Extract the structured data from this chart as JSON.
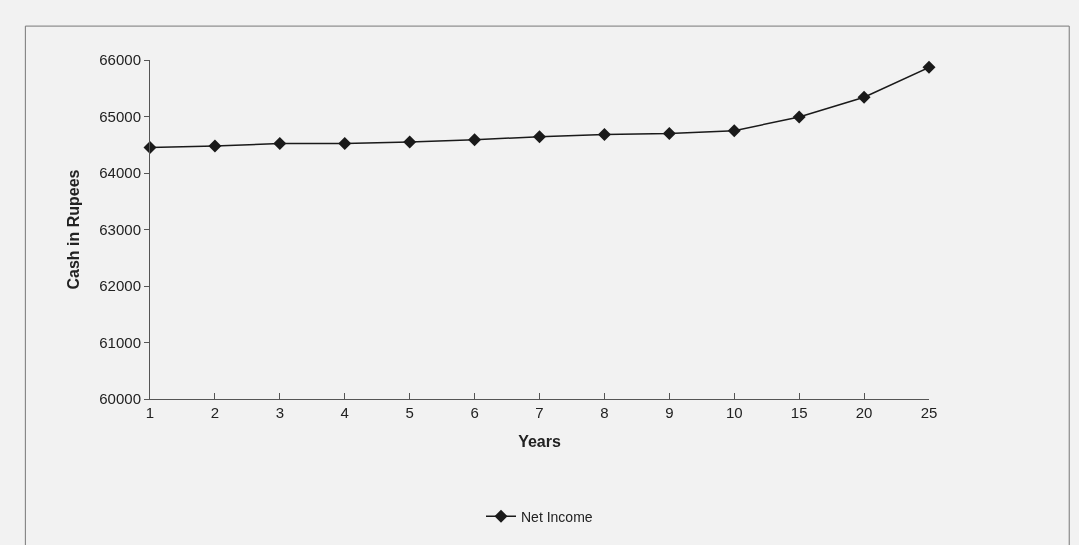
{
  "chart_data": {
    "type": "line",
    "xlabel": "Years",
    "ylabel": "Cash in Rupees",
    "categories": [
      "1",
      "2",
      "3",
      "4",
      "5",
      "6",
      "7",
      "8",
      "9",
      "10",
      "15",
      "20",
      "25"
    ],
    "series": [
      {
        "name": "Net Income",
        "color": "#1a1a1a",
        "values": [
          64450,
          64480,
          64520,
          64520,
          64550,
          64590,
          64640,
          64680,
          64700,
          64750,
          64990,
          65340,
          65870
        ]
      }
    ],
    "ylim": [
      60000,
      66000
    ],
    "yticks": [
      60000,
      61000,
      62000,
      63000,
      64000,
      65000,
      66000
    ],
    "grid": false,
    "legend": "bottom",
    "marker": "diamond",
    "line_style": "solid"
  }
}
